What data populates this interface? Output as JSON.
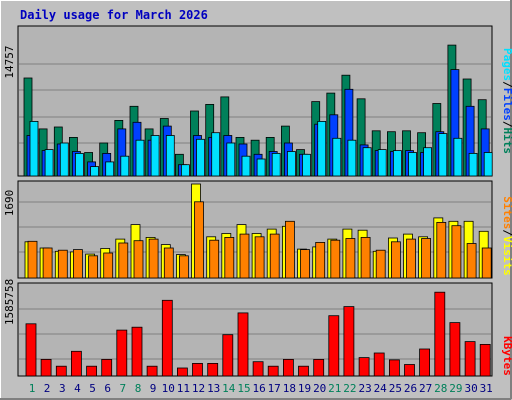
{
  "chart_data": [
    {
      "type": "bar",
      "panel": "hits-files-pages",
      "title": "Daily usage for March 2026",
      "ymax_label": "14757",
      "ylim": [
        0,
        14757
      ],
      "categories": [
        "1",
        "2",
        "3",
        "4",
        "5",
        "6",
        "7",
        "8",
        "9",
        "10",
        "11",
        "12",
        "13",
        "14",
        "15",
        "16",
        "17",
        "18",
        "19",
        "20",
        "21",
        "22",
        "23",
        "24",
        "25",
        "26",
        "27",
        "28",
        "29",
        "30",
        "31"
      ],
      "series": [
        {
          "name": "Hits",
          "color": "#00805a",
          "values": [
            10400,
            5000,
            5200,
            4100,
            2500,
            3500,
            5900,
            7400,
            5000,
            6100,
            2300,
            6900,
            7600,
            8400,
            4100,
            3800,
            4100,
            5300,
            2800,
            7900,
            8800,
            10700,
            8200,
            4800,
            4700,
            4800,
            4600,
            7700,
            13900,
            10300,
            8100
          ]
        },
        {
          "name": "Files",
          "color": "#0040ff",
          "values": [
            4300,
            2700,
            3400,
            2600,
            1500,
            2400,
            5000,
            5700,
            3800,
            5300,
            1200,
            4300,
            4100,
            4300,
            3400,
            2300,
            2600,
            3500,
            2300,
            5500,
            6500,
            9200,
            3300,
            2700,
            2600,
            2700,
            2500,
            4700,
            11300,
            7400,
            5000
          ]
        },
        {
          "name": "Pages",
          "color": "#00e0ff",
          "values": [
            5800,
            2800,
            3500,
            2400,
            1000,
            1500,
            2100,
            3800,
            4300,
            4300,
            1200,
            3900,
            4600,
            3500,
            2100,
            1800,
            2400,
            2600,
            2300,
            5800,
            4000,
            3800,
            3000,
            2800,
            2700,
            2500,
            3000,
            4500,
            4000,
            2400,
            2500
          ]
        }
      ]
    },
    {
      "type": "bar",
      "panel": "visits-sites",
      "ymax_label": "1690",
      "ylim": [
        0,
        1690
      ],
      "categories": [
        "1",
        "2",
        "3",
        "4",
        "5",
        "6",
        "7",
        "8",
        "9",
        "10",
        "11",
        "12",
        "13",
        "14",
        "15",
        "16",
        "17",
        "18",
        "19",
        "20",
        "21",
        "22",
        "23",
        "24",
        "25",
        "26",
        "27",
        "28",
        "29",
        "30",
        "31"
      ],
      "series": [
        {
          "name": "Visits",
          "color": "#ffff00",
          "values": [
            650,
            540,
            480,
            470,
            430,
            530,
            700,
            960,
            730,
            600,
            420,
            1690,
            740,
            800,
            960,
            800,
            880,
            930,
            520,
            560,
            700,
            880,
            860,
            480,
            720,
            790,
            740,
            1080,
            1020,
            1020,
            840
          ]
        },
        {
          "name": "Sites",
          "color": "#ff8000",
          "values": [
            660,
            540,
            500,
            510,
            400,
            450,
            630,
            670,
            700,
            540,
            400,
            1370,
            680,
            730,
            790,
            740,
            790,
            1020,
            510,
            640,
            680,
            710,
            730,
            500,
            650,
            700,
            710,
            1000,
            940,
            620,
            540
          ]
        }
      ]
    },
    {
      "type": "bar",
      "panel": "kbytes",
      "ymax_label": "1585758",
      "ylim": [
        0,
        1585758
      ],
      "categories": [
        "1",
        "2",
        "3",
        "4",
        "5",
        "6",
        "7",
        "8",
        "9",
        "10",
        "11",
        "12",
        "13",
        "14",
        "15",
        "16",
        "17",
        "18",
        "19",
        "20",
        "21",
        "22",
        "23",
        "24",
        "25",
        "26",
        "27",
        "28",
        "29",
        "30",
        "31"
      ],
      "series": [
        {
          "name": "KBytes",
          "color": "#ff0000",
          "values": [
            910000,
            290000,
            170000,
            430000,
            170000,
            290000,
            800000,
            850000,
            170000,
            1320000,
            140000,
            220000,
            220000,
            720000,
            1100000,
            250000,
            170000,
            290000,
            170000,
            290000,
            1050000,
            1210000,
            320000,
            400000,
            280000,
            200000,
            470000,
            1460000,
            930000,
            600000,
            550000
          ]
        }
      ]
    }
  ],
  "legends": {
    "top": [
      {
        "text": "Pages",
        "color": "#00e0ff"
      },
      {
        "text": "/",
        "color": "#000000"
      },
      {
        "text": "Files",
        "color": "#0040ff"
      },
      {
        "text": "/",
        "color": "#000000"
      },
      {
        "text": "Hits",
        "color": "#00805a"
      }
    ],
    "middle": [
      {
        "text": "Sites",
        "color": "#ff8000"
      },
      {
        "text": "/",
        "color": "#000000"
      },
      {
        "text": "Visits",
        "color": "#ffff00"
      }
    ],
    "bottom": [
      {
        "text": "KBytes",
        "color": "#ff0000"
      }
    ]
  },
  "weekend_days": [
    "1",
    "7",
    "8",
    "14",
    "15",
    "21",
    "22",
    "28",
    "29"
  ],
  "colors": {
    "weekday": "#000080",
    "weekend": "#00805a",
    "background": "#c0c0c0",
    "plot": "#b0b0b0",
    "grid": "#808080"
  }
}
